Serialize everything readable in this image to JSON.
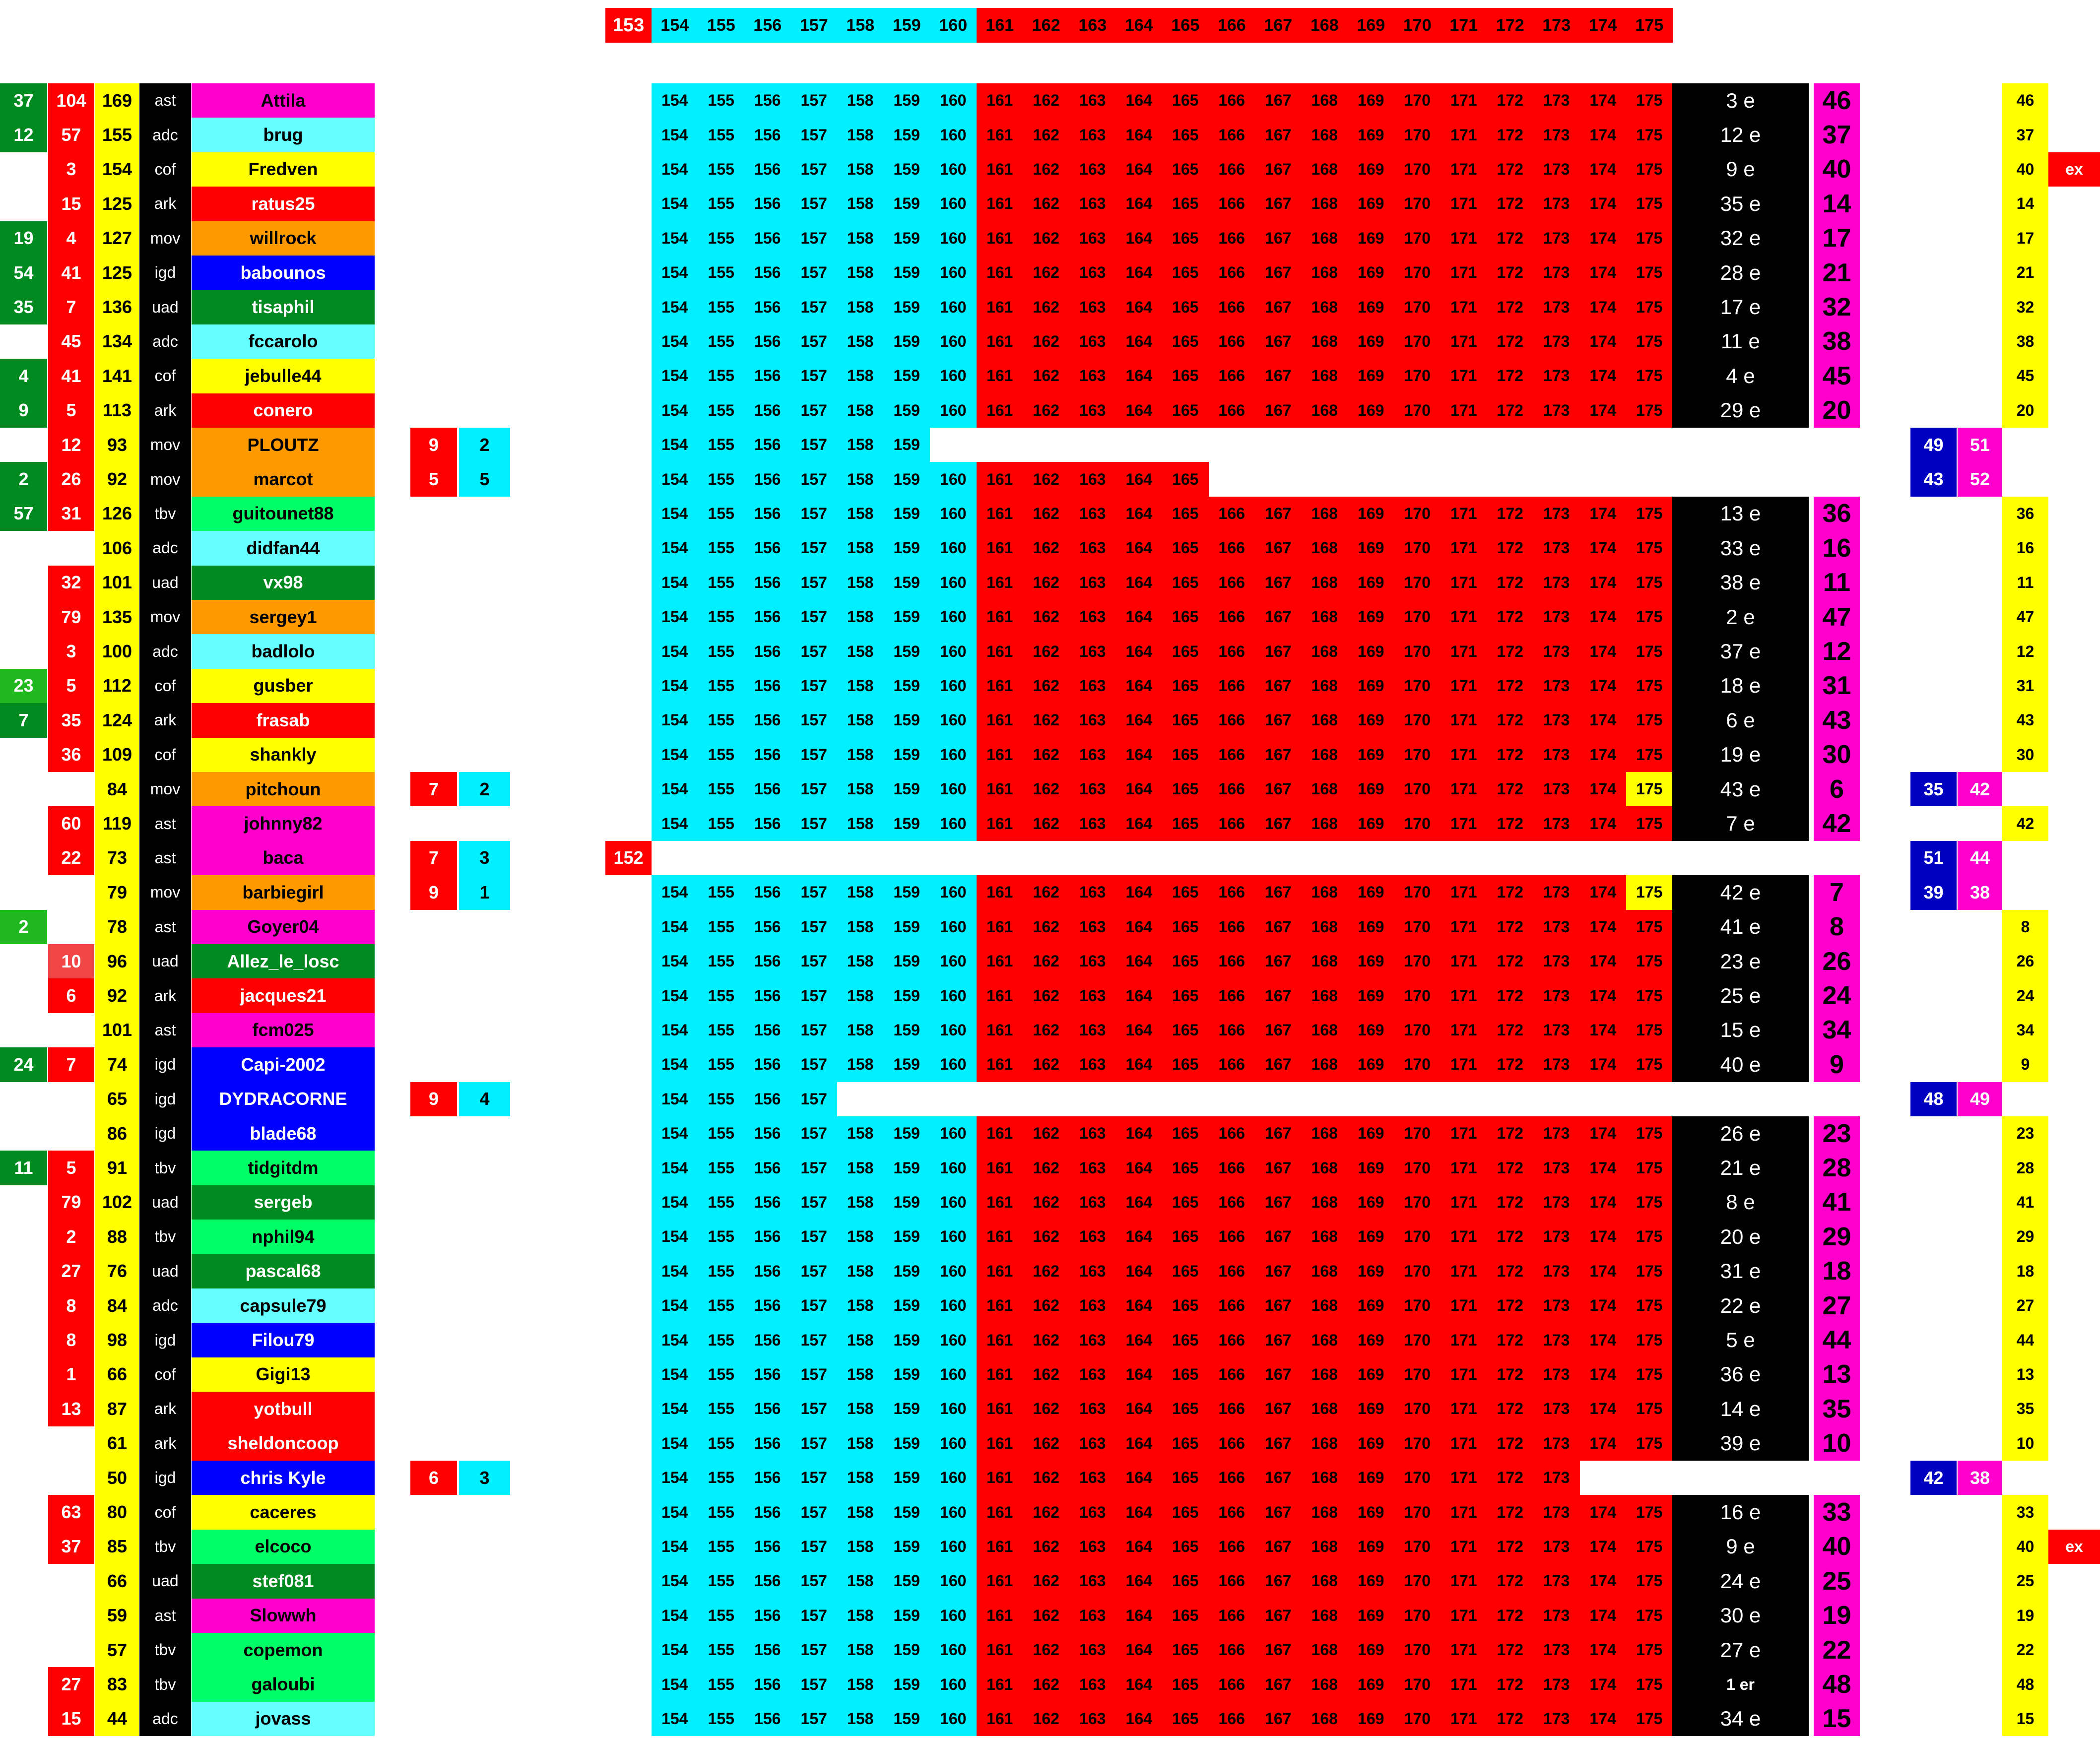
{
  "colors": {
    "green": "#008a20",
    "green2": "#1fb81f",
    "red": "#ff0000",
    "red2": "#f24646",
    "yellow": "#ffff00",
    "black": "#000000",
    "cyan": "#00f0ff",
    "white": "#ffffff",
    "magenta": "#ff00cc",
    "navy": "#0000c0",
    "team": {
      "ast": "#ff00cc",
      "adc": "#66ffff",
      "cof": "#ffff00",
      "ark": "#ff0000",
      "mov": "#ff9900",
      "igd": "#0000ff",
      "uad": "#008a20",
      "tbv": "#00ff66"
    }
  },
  "header": {
    "start": "153",
    "cyan": [
      "154",
      "155",
      "156",
      "157",
      "158",
      "159",
      "160"
    ],
    "red": [
      "161",
      "162",
      "163",
      "164",
      "165",
      "166",
      "167",
      "168",
      "169",
      "170",
      "171",
      "172",
      "173",
      "174",
      "175"
    ]
  },
  "race": {
    "cyan": [
      "154",
      "155",
      "156",
      "157",
      "158",
      "159",
      "160"
    ],
    "red": [
      "161",
      "162",
      "163",
      "164",
      "165",
      "166",
      "167",
      "168",
      "169",
      "170",
      "171",
      "172",
      "173",
      "174",
      "175"
    ]
  },
  "rows": [
    {
      "c0": "37",
      "c1": "104",
      "c2": "169",
      "team": "ast",
      "name": "Attila",
      "cyan": 7,
      "red": 15,
      "rank": "3 e",
      "pts": "46",
      "right": "46"
    },
    {
      "c0": "12",
      "c1": "57",
      "c2": "155",
      "team": "adc",
      "name": "brug",
      "cyan": 7,
      "red": 15,
      "rank": "12 e",
      "pts": "37",
      "right": "37"
    },
    {
      "c0": "",
      "c1": "3",
      "c2": "154",
      "team": "cof",
      "name": "Fredven",
      "cyan": 7,
      "red": 15,
      "rank": "9 e",
      "pts": "40",
      "right": "40",
      "ex": "ex"
    },
    {
      "c0": "",
      "c1": "15",
      "c2": "125",
      "team": "ark",
      "name": "ratus25",
      "cyan": 7,
      "red": 15,
      "rank": "35 e",
      "pts": "14",
      "right": "14"
    },
    {
      "c0": "19",
      "c1": "4",
      "c2": "127",
      "team": "mov",
      "name": "willrock",
      "cyan": 7,
      "red": 15,
      "rank": "32 e",
      "pts": "17",
      "right": "17"
    },
    {
      "c0": "54",
      "c1": "41",
      "c2": "125",
      "team": "igd",
      "name": "babounos",
      "cyan": 7,
      "red": 15,
      "rank": "28 e",
      "pts": "21",
      "right": "21"
    },
    {
      "c0": "35",
      "c1": "7",
      "c2": "136",
      "team": "uad",
      "name": "tisaphil",
      "cyan": 7,
      "red": 15,
      "rank": "17 e",
      "pts": "32",
      "right": "32"
    },
    {
      "c0": "",
      "c1": "45",
      "c2": "134",
      "team": "adc",
      "name": "fccarolo",
      "cyan": 7,
      "red": 15,
      "rank": "11 e",
      "pts": "38",
      "right": "38"
    },
    {
      "c0": "4",
      "c1": "41",
      "c2": "141",
      "team": "cof",
      "name": "jebulle44",
      "cyan": 7,
      "red": 15,
      "rank": "4 e",
      "pts": "45",
      "right": "45"
    },
    {
      "c0": "9",
      "c1": "5",
      "c2": "113",
      "team": "ark",
      "name": "conero",
      "cyan": 7,
      "red": 15,
      "rank": "29 e",
      "pts": "20",
      "right": "20"
    },
    {
      "c0": "",
      "c1": "12",
      "c2": "93",
      "team": "mov",
      "name": "PLOUTZ",
      "ab": [
        "9",
        "2"
      ],
      "cyan": 6,
      "red": 0,
      "blue": [
        "49",
        "51"
      ]
    },
    {
      "c0": "2",
      "c1": "26",
      "c2": "92",
      "team": "mov",
      "name": "marcot",
      "ab": [
        "5",
        "5"
      ],
      "cyan": 7,
      "red": 5,
      "blue": [
        "43",
        "52"
      ]
    },
    {
      "c0": "57",
      "c1": "31",
      "c2": "126",
      "team": "tbv",
      "name": "guitounet88",
      "cyan": 7,
      "red": 15,
      "rank": "13 e",
      "pts": "36",
      "right": "36"
    },
    {
      "c0": "",
      "c1": "",
      "c2": "106",
      "team": "adc",
      "name": "didfan44",
      "cyan": 7,
      "red": 15,
      "rank": "33 e",
      "pts": "16",
      "right": "16"
    },
    {
      "c0": "",
      "c1": "32",
      "c2": "101",
      "team": "uad",
      "name": "vx98",
      "cyan": 7,
      "red": 15,
      "rank": "38 e",
      "pts": "11",
      "right": "11"
    },
    {
      "c0": "",
      "c1": "79",
      "c2": "135",
      "team": "mov",
      "name": "sergey1",
      "cyan": 7,
      "red": 15,
      "rank": "2 e",
      "pts": "47",
      "right": "47"
    },
    {
      "c0": "",
      "c1": "3",
      "c2": "100",
      "team": "adc",
      "name": "badlolo",
      "cyan": 7,
      "red": 15,
      "rank": "37 e",
      "pts": "12",
      "right": "12"
    },
    {
      "c0": "23",
      "c0c": "green2",
      "c1": "5",
      "c2": "112",
      "team": "cof",
      "name": "gusber",
      "cyan": 7,
      "red": 15,
      "rank": "18 e",
      "pts": "31",
      "right": "31"
    },
    {
      "c0": "7",
      "c1": "35",
      "c2": "124",
      "team": "ark",
      "name": "frasab",
      "cyan": 7,
      "red": 15,
      "rank": "6 e",
      "pts": "43",
      "right": "43"
    },
    {
      "c0": "",
      "c1": "36",
      "c2": "109",
      "team": "cof",
      "name": "shankly",
      "cyan": 7,
      "red": 15,
      "rank": "19 e",
      "pts": "30",
      "right": "30"
    },
    {
      "c0": "",
      "c1": "",
      "c2": "84",
      "team": "mov",
      "name": "pitchoun",
      "ab": [
        "7",
        "2"
      ],
      "cyan": 7,
      "red": 15,
      "lastYellow": true,
      "rank": "43 e",
      "pts": "6",
      "blue": [
        "35",
        "42"
      ]
    },
    {
      "c0": "",
      "c1": "60",
      "c2": "119",
      "team": "ast",
      "name": "johnny82",
      "cyan": 7,
      "red": 15,
      "rank": "7 e",
      "pts": "42",
      "right": "42"
    },
    {
      "c0": "",
      "c1": "22",
      "c2": "73",
      "team": "ast",
      "name": "baca",
      "ab": [
        "7",
        "3"
      ],
      "start": "152",
      "cyan": 0,
      "red": 0,
      "blue": [
        "51",
        "44"
      ]
    },
    {
      "c0": "",
      "c1": "",
      "c2": "79",
      "team": "mov",
      "name": "barbiegirl",
      "ab": [
        "9",
        "1"
      ],
      "cyan": 7,
      "red": 15,
      "lastYellow": true,
      "rank": "42 e",
      "pts": "7",
      "blue": [
        "39",
        "38"
      ]
    },
    {
      "c0": "2",
      "c0c": "green2",
      "c1": "",
      "c2": "78",
      "team": "ast",
      "name": "Goyer04",
      "cyan": 7,
      "red": 15,
      "rank": "41 e",
      "pts": "8",
      "right": "8"
    },
    {
      "c0": "",
      "c1": "10",
      "c1c": "red2",
      "c2": "96",
      "team": "uad",
      "name": "Allez_le_losc",
      "cyan": 7,
      "red": 15,
      "rank": "23 e",
      "pts": "26",
      "right": "26"
    },
    {
      "c0": "",
      "c1": "6",
      "c2": "92",
      "team": "ark",
      "name": "jacques21",
      "cyan": 7,
      "red": 15,
      "rank": "25 e",
      "pts": "24",
      "right": "24"
    },
    {
      "c0": "",
      "c1": "",
      "c2": "101",
      "team": "ast",
      "name": "fcm025",
      "cyan": 7,
      "red": 15,
      "rank": "15 e",
      "pts": "34",
      "right": "34"
    },
    {
      "c0": "24",
      "c1": "7",
      "c2": "74",
      "team": "igd",
      "name": "Capi-2002",
      "cyan": 7,
      "red": 15,
      "rank": "40 e",
      "pts": "9",
      "right": "9"
    },
    {
      "c0": "",
      "c1": "",
      "c2": "65",
      "team": "igd",
      "name": "DYDRACORNE",
      "ab": [
        "9",
        "4"
      ],
      "cyan": 4,
      "red": 0,
      "blue": [
        "48",
        "49"
      ]
    },
    {
      "c0": "",
      "c1": "",
      "c2": "86",
      "team": "igd",
      "name": "blade68",
      "cyan": 7,
      "red": 15,
      "rank": "26 e",
      "pts": "23",
      "right": "23"
    },
    {
      "c0": "11",
      "c1": "5",
      "c2": "91",
      "team": "tbv",
      "name": "tidgitdm",
      "cyan": 7,
      "red": 15,
      "rank": "21 e",
      "pts": "28",
      "right": "28"
    },
    {
      "c0": "",
      "c1": "79",
      "c2": "102",
      "team": "uad",
      "name": "sergeb",
      "cyan": 7,
      "red": 15,
      "rank": "8 e",
      "pts": "41",
      "right": "41"
    },
    {
      "c0": "",
      "c1": "2",
      "c2": "88",
      "team": "tbv",
      "name": "nphil94",
      "cyan": 7,
      "red": 15,
      "rank": "20 e",
      "pts": "29",
      "right": "29"
    },
    {
      "c0": "",
      "c1": "27",
      "c2": "76",
      "team": "uad",
      "name": "pascal68",
      "cyan": 7,
      "red": 15,
      "rank": "31 e",
      "pts": "18",
      "right": "18"
    },
    {
      "c0": "",
      "c1": "8",
      "c2": "84",
      "team": "adc",
      "name": "capsule79",
      "cyan": 7,
      "red": 15,
      "rank": "22 e",
      "pts": "27",
      "right": "27"
    },
    {
      "c0": "",
      "c1": "8",
      "c2": "98",
      "team": "igd",
      "name": "Filou79",
      "cyan": 7,
      "red": 15,
      "rank": "5 e",
      "pts": "44",
      "right": "44"
    },
    {
      "c0": "",
      "c1": "1",
      "c2": "66",
      "team": "cof",
      "name": "Gigi13",
      "cyan": 7,
      "red": 15,
      "rank": "36 e",
      "pts": "13",
      "right": "13"
    },
    {
      "c0": "",
      "c1": "13",
      "c2": "87",
      "team": "ark",
      "name": "yotbull",
      "cyan": 7,
      "red": 15,
      "rank": "14 e",
      "pts": "35",
      "right": "35"
    },
    {
      "c0": "",
      "c1": "",
      "c2": "61",
      "team": "ark",
      "name": "sheldoncoop",
      "cyan": 7,
      "red": 15,
      "rank": "39 e",
      "pts": "10",
      "right": "10"
    },
    {
      "c0": "",
      "c1": "",
      "c2": "50",
      "team": "igd",
      "name": "chris Kyle",
      "ab": [
        "6",
        "3"
      ],
      "cyan": 7,
      "red": 13,
      "blue": [
        "42",
        "38"
      ]
    },
    {
      "c0": "",
      "c1": "63",
      "c2": "80",
      "team": "cof",
      "name": "caceres",
      "cyan": 7,
      "red": 15,
      "rank": "16 e",
      "pts": "33",
      "right": "33"
    },
    {
      "c0": "",
      "c1": "37",
      "c2": "85",
      "team": "tbv",
      "name": "elcoco",
      "cyan": 7,
      "red": 15,
      "rank": "9 e",
      "pts": "40",
      "right": "40",
      "ex": "ex"
    },
    {
      "c0": "",
      "c1": "",
      "c2": "66",
      "team": "uad",
      "name": "stef081",
      "cyan": 7,
      "red": 15,
      "rank": "24 e",
      "pts": "25",
      "right": "25"
    },
    {
      "c0": "",
      "c1": "",
      "c2": "59",
      "team": "ast",
      "name": "Slowwh",
      "cyan": 7,
      "red": 15,
      "rank": "30 e",
      "pts": "19",
      "right": "19"
    },
    {
      "c0": "",
      "c1": "",
      "c2": "57",
      "team": "tbv",
      "name": "copemon",
      "cyan": 7,
      "red": 15,
      "rank": "27 e",
      "pts": "22",
      "right": "22"
    },
    {
      "c0": "",
      "c1": "27",
      "c2": "83",
      "team": "tbv",
      "name": "galoubi",
      "cyan": 7,
      "red": 15,
      "rank": "1 er",
      "rankSmall": true,
      "pts": "48",
      "right": "48"
    },
    {
      "c0": "",
      "c1": "15",
      "c2": "44",
      "team": "adc",
      "name": "jovass",
      "cyan": 7,
      "red": 15,
      "rank": "34 e",
      "pts": "15",
      "right": "15"
    }
  ]
}
